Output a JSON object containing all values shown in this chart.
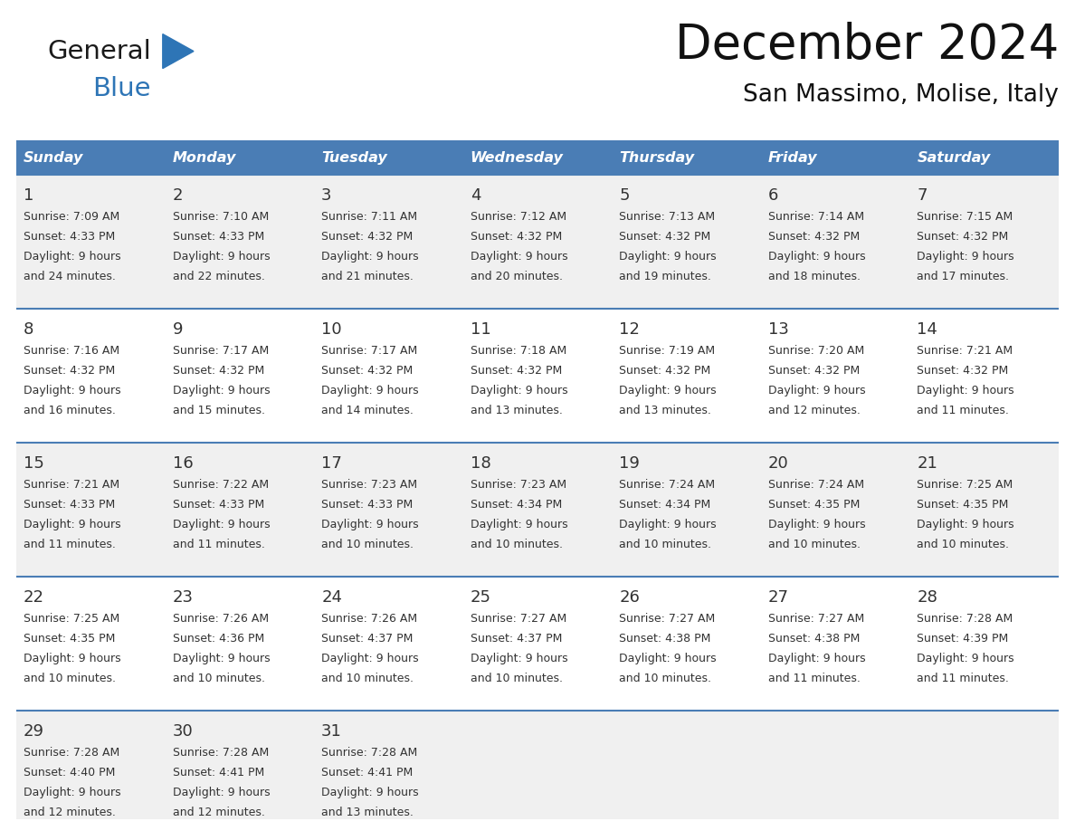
{
  "title": "December 2024",
  "subtitle": "San Massimo, Molise, Italy",
  "header_bg": "#4A7DB5",
  "header_text_color": "#FFFFFF",
  "row_bg_odd": "#F0F0F0",
  "row_bg_even": "#FFFFFF",
  "border_color": "#4A7DB5",
  "cell_text_color": "#333333",
  "days_of_week": [
    "Sunday",
    "Monday",
    "Tuesday",
    "Wednesday",
    "Thursday",
    "Friday",
    "Saturday"
  ],
  "calendar_data": [
    [
      {
        "day": 1,
        "sunrise": "7:09 AM",
        "sunset": "4:33 PM",
        "daylight": "9 hours and 24 minutes."
      },
      {
        "day": 2,
        "sunrise": "7:10 AM",
        "sunset": "4:33 PM",
        "daylight": "9 hours and 22 minutes."
      },
      {
        "day": 3,
        "sunrise": "7:11 AM",
        "sunset": "4:32 PM",
        "daylight": "9 hours and 21 minutes."
      },
      {
        "day": 4,
        "sunrise": "7:12 AM",
        "sunset": "4:32 PM",
        "daylight": "9 hours and 20 minutes."
      },
      {
        "day": 5,
        "sunrise": "7:13 AM",
        "sunset": "4:32 PM",
        "daylight": "9 hours and 19 minutes."
      },
      {
        "day": 6,
        "sunrise": "7:14 AM",
        "sunset": "4:32 PM",
        "daylight": "9 hours and 18 minutes."
      },
      {
        "day": 7,
        "sunrise": "7:15 AM",
        "sunset": "4:32 PM",
        "daylight": "9 hours and 17 minutes."
      }
    ],
    [
      {
        "day": 8,
        "sunrise": "7:16 AM",
        "sunset": "4:32 PM",
        "daylight": "9 hours and 16 minutes."
      },
      {
        "day": 9,
        "sunrise": "7:17 AM",
        "sunset": "4:32 PM",
        "daylight": "9 hours and 15 minutes."
      },
      {
        "day": 10,
        "sunrise": "7:17 AM",
        "sunset": "4:32 PM",
        "daylight": "9 hours and 14 minutes."
      },
      {
        "day": 11,
        "sunrise": "7:18 AM",
        "sunset": "4:32 PM",
        "daylight": "9 hours and 13 minutes."
      },
      {
        "day": 12,
        "sunrise": "7:19 AM",
        "sunset": "4:32 PM",
        "daylight": "9 hours and 13 minutes."
      },
      {
        "day": 13,
        "sunrise": "7:20 AM",
        "sunset": "4:32 PM",
        "daylight": "9 hours and 12 minutes."
      },
      {
        "day": 14,
        "sunrise": "7:21 AM",
        "sunset": "4:32 PM",
        "daylight": "9 hours and 11 minutes."
      }
    ],
    [
      {
        "day": 15,
        "sunrise": "7:21 AM",
        "sunset": "4:33 PM",
        "daylight": "9 hours and 11 minutes."
      },
      {
        "day": 16,
        "sunrise": "7:22 AM",
        "sunset": "4:33 PM",
        "daylight": "9 hours and 11 minutes."
      },
      {
        "day": 17,
        "sunrise": "7:23 AM",
        "sunset": "4:33 PM",
        "daylight": "9 hours and 10 minutes."
      },
      {
        "day": 18,
        "sunrise": "7:23 AM",
        "sunset": "4:34 PM",
        "daylight": "9 hours and 10 minutes."
      },
      {
        "day": 19,
        "sunrise": "7:24 AM",
        "sunset": "4:34 PM",
        "daylight": "9 hours and 10 minutes."
      },
      {
        "day": 20,
        "sunrise": "7:24 AM",
        "sunset": "4:35 PM",
        "daylight": "9 hours and 10 minutes."
      },
      {
        "day": 21,
        "sunrise": "7:25 AM",
        "sunset": "4:35 PM",
        "daylight": "9 hours and 10 minutes."
      }
    ],
    [
      {
        "day": 22,
        "sunrise": "7:25 AM",
        "sunset": "4:35 PM",
        "daylight": "9 hours and 10 minutes."
      },
      {
        "day": 23,
        "sunrise": "7:26 AM",
        "sunset": "4:36 PM",
        "daylight": "9 hours and 10 minutes."
      },
      {
        "day": 24,
        "sunrise": "7:26 AM",
        "sunset": "4:37 PM",
        "daylight": "9 hours and 10 minutes."
      },
      {
        "day": 25,
        "sunrise": "7:27 AM",
        "sunset": "4:37 PM",
        "daylight": "9 hours and 10 minutes."
      },
      {
        "day": 26,
        "sunrise": "7:27 AM",
        "sunset": "4:38 PM",
        "daylight": "9 hours and 10 minutes."
      },
      {
        "day": 27,
        "sunrise": "7:27 AM",
        "sunset": "4:38 PM",
        "daylight": "9 hours and 11 minutes."
      },
      {
        "day": 28,
        "sunrise": "7:28 AM",
        "sunset": "4:39 PM",
        "daylight": "9 hours and 11 minutes."
      }
    ],
    [
      {
        "day": 29,
        "sunrise": "7:28 AM",
        "sunset": "4:40 PM",
        "daylight": "9 hours and 12 minutes."
      },
      {
        "day": 30,
        "sunrise": "7:28 AM",
        "sunset": "4:41 PM",
        "daylight": "9 hours and 12 minutes."
      },
      {
        "day": 31,
        "sunrise": "7:28 AM",
        "sunset": "4:41 PM",
        "daylight": "9 hours and 13 minutes."
      },
      null,
      null,
      null,
      null
    ]
  ],
  "fig_width": 11.88,
  "fig_height": 9.18,
  "dpi": 100
}
